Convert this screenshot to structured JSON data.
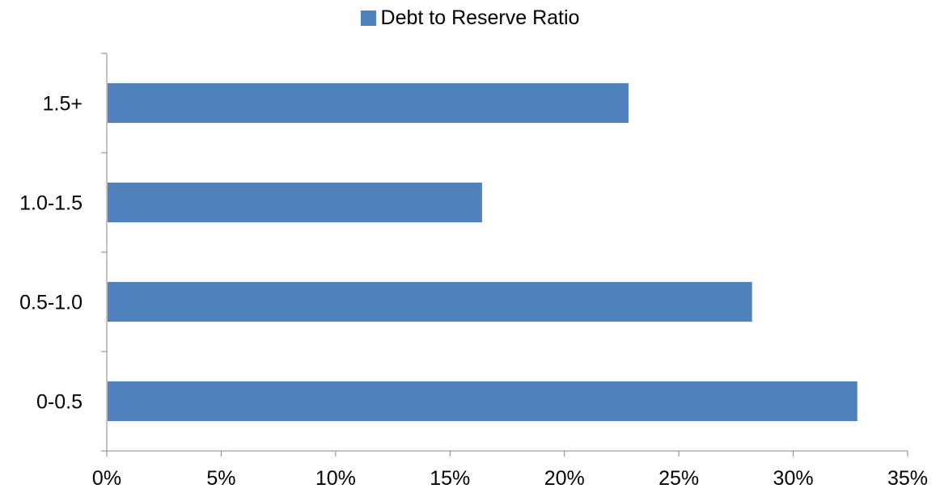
{
  "chart_data": {
    "type": "bar",
    "orientation": "horizontal",
    "categories": [
      "0-0.5",
      "0.5-1.0",
      "1.0-1.5",
      "1.5+"
    ],
    "series": [
      {
        "name": "Debt to Reserve Ratio",
        "values": [
          32.8,
          28.2,
          16.4,
          22.8
        ],
        "color": "#4f81bd"
      }
    ],
    "x_tick_labels": [
      "0%",
      "5%",
      "10%",
      "15%",
      "20%",
      "25%",
      "30%",
      "35%"
    ],
    "xlim": [
      0,
      35
    ],
    "legend_position": "top",
    "grid": false
  }
}
